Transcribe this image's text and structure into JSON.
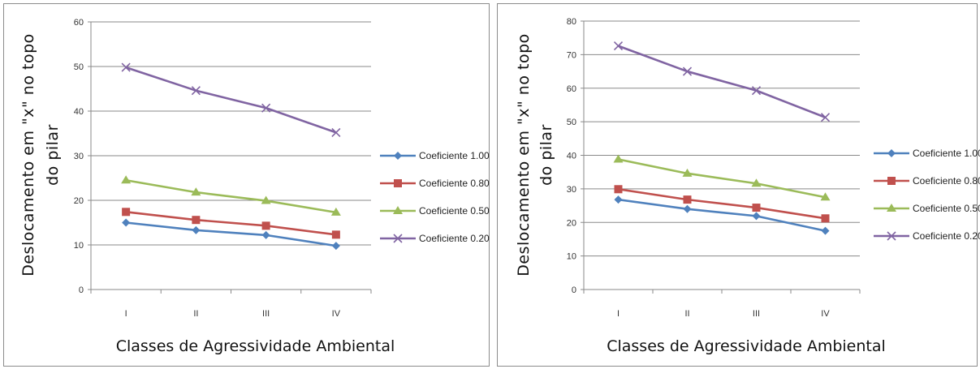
{
  "chart_data": [
    {
      "type": "line",
      "categories": [
        "I",
        "II",
        "III",
        "IV"
      ],
      "ylim": [
        0,
        60
      ],
      "yticks": [
        0,
        10,
        20,
        30,
        40,
        50,
        60
      ],
      "grid": true,
      "legend": "right",
      "xlabel": "Classes de Agressividade Ambiental",
      "ylabel_lines": [
        "Deslocamento em \"x\" no topo",
        "do pilar"
      ],
      "series": [
        {
          "name": "Coeficiente 1.00",
          "color": "#4f81bd",
          "marker": "diamond",
          "values": [
            15,
            13.3,
            12.2,
            9.8
          ]
        },
        {
          "name": "Coeficiente 0.80",
          "color": "#c0504d",
          "marker": "square",
          "values": [
            17.4,
            15.6,
            14.3,
            12.3
          ]
        },
        {
          "name": "Coeficiente 0.50",
          "color": "#9bbb59",
          "marker": "triangle",
          "values": [
            24.5,
            21.8,
            19.9,
            17.3
          ]
        },
        {
          "name": "Coeficiente 0.20",
          "color": "#8064a2",
          "marker": "x",
          "values": [
            49.8,
            44.6,
            40.7,
            35.2
          ]
        }
      ]
    },
    {
      "type": "line",
      "categories": [
        "I",
        "II",
        "III",
        "IV"
      ],
      "ylim": [
        0,
        80
      ],
      "yticks": [
        0,
        10,
        20,
        30,
        40,
        50,
        60,
        70,
        80
      ],
      "grid": true,
      "legend": "right",
      "xlabel": "Classes de Agressividade Ambiental",
      "ylabel_lines": [
        "Deslocamento em \"x\" no topo",
        "do pilar"
      ],
      "series": [
        {
          "name": "Coeficiente 1.00",
          "color": "#4f81bd",
          "marker": "diamond",
          "values": [
            26.8,
            24,
            21.9,
            17.5
          ]
        },
        {
          "name": "Coeficiente 0.80",
          "color": "#c0504d",
          "marker": "square",
          "values": [
            29.9,
            26.8,
            24.4,
            21.2
          ]
        },
        {
          "name": "Coeficiente 0.50",
          "color": "#9bbb59",
          "marker": "triangle",
          "values": [
            38.8,
            34.6,
            31.6,
            27.5
          ]
        },
        {
          "name": "Coeficiente 0.20",
          "color": "#8064a2",
          "marker": "x",
          "values": [
            72.6,
            65,
            59.3,
            51.3
          ]
        }
      ]
    }
  ]
}
